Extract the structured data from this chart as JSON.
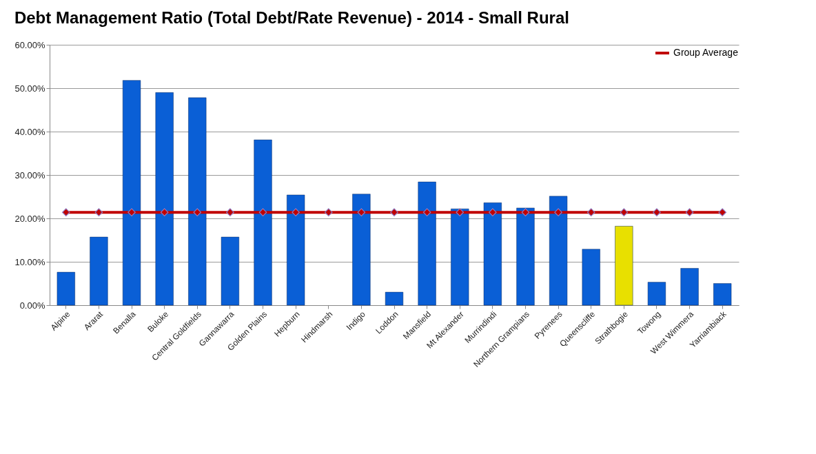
{
  "chart_data": {
    "type": "bar",
    "title": "Debt Management Ratio (Total Debt/Rate Revenue) - 2014 - Small Rural",
    "categories": [
      "Alpine",
      "Ararat",
      "Benalla",
      "Buloke",
      "Central Goldfields",
      "Gannawarra",
      "Golden Plains",
      "Hepburn",
      "Hindmarsh",
      "Indigo",
      "Loddon",
      "Mansfield",
      "Mt Alexander",
      "Murrindindi",
      "Northern Grampians",
      "Pyrenees",
      "Queenscliffe",
      "Strathbogie",
      "Towong",
      "West Wimmera",
      "Yarriambiack"
    ],
    "series": [
      {
        "colors": [
          "#0a5fd6",
          "#0a5fd6",
          "#0a5fd6",
          "#0a5fd6",
          "#0a5fd6",
          "#0a5fd6",
          "#0a5fd6",
          "#0a5fd6",
          "#0a5fd6",
          "#0a5fd6",
          "#0a5fd6",
          "#0a5fd6",
          "#0a5fd6",
          "#0a5fd6",
          "#0a5fd6",
          "#0a5fd6",
          "#0a5fd6",
          "#e8e000",
          "#0a5fd6",
          "#0a5fd6",
          "#0a5fd6"
        ],
        "values": [
          7.6,
          15.7,
          51.8,
          49.0,
          47.8,
          15.7,
          38.1,
          25.4,
          null,
          25.6,
          3.0,
          28.4,
          22.2,
          23.6,
          22.4,
          25.1,
          12.9,
          18.2,
          5.3,
          8.5,
          5.0
        ]
      },
      {
        "type": "line",
        "name": "Group Average",
        "color": "#c00000",
        "marker": "diamond",
        "values": [
          21.4,
          21.4,
          21.4,
          21.4,
          21.4,
          21.4,
          21.4,
          21.4,
          21.4,
          21.4,
          21.4,
          21.4,
          21.4,
          21.4,
          21.4,
          21.4,
          21.4,
          21.4,
          21.4,
          21.4,
          21.4
        ]
      }
    ],
    "ylim": [
      0,
      60
    ],
    "yticks": [
      {
        "value": 0,
        "label": "0.00%"
      },
      {
        "value": 10,
        "label": "10.00%"
      },
      {
        "value": 20,
        "label": "20.00%"
      },
      {
        "value": 30,
        "label": "30.00%"
      },
      {
        "value": 40,
        "label": "40.00%"
      },
      {
        "value": 50,
        "label": "50.00%"
      },
      {
        "value": 60,
        "label": "60.00%"
      }
    ],
    "grid": "y",
    "legend": "top right"
  }
}
